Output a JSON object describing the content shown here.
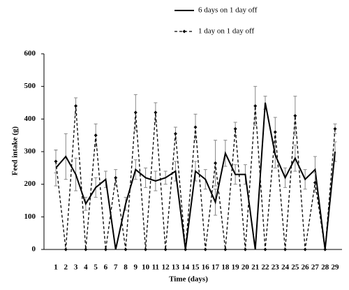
{
  "chart_data": {
    "type": "line",
    "x_label": "Time (days)",
    "y_label": "Feed intake (g)",
    "categories": [
      "1",
      "2",
      "3",
      "4",
      "5",
      "6",
      "7",
      "8",
      "9",
      "10",
      "11",
      "12",
      "13",
      "14",
      "15",
      "16",
      "17",
      "18",
      "19",
      "20",
      "21",
      "22",
      "23",
      "24",
      "25",
      "26",
      "27",
      "28",
      "29"
    ],
    "ylim": [
      0,
      600
    ],
    "yticks": [
      0,
      100,
      200,
      300,
      400,
      500,
      600
    ],
    "grid": false,
    "series": [
      {
        "name": "6 days on 1 day off",
        "color": "#000000",
        "dash": false,
        "values": [
          250,
          285,
          230,
          140,
          190,
          215,
          0,
          140,
          245,
          220,
          210,
          220,
          240,
          0,
          240,
          215,
          145,
          295,
          230,
          230,
          0,
          450,
          290,
          220,
          280,
          215,
          245,
          0,
          300
        ],
        "errors": [
          55,
          70,
          50,
          20,
          30,
          25,
          null,
          20,
          30,
          30,
          30,
          20,
          30,
          null,
          30,
          30,
          40,
          40,
          30,
          30,
          null,
          20,
          40,
          30,
          40,
          30,
          40,
          null,
          30
        ]
      },
      {
        "name": "1 day on 1 day off",
        "color": "#000000",
        "dash": true,
        "values": [
          270,
          0,
          440,
          0,
          350,
          0,
          220,
          0,
          420,
          0,
          420,
          0,
          355,
          0,
          375,
          0,
          265,
          0,
          370,
          0,
          440,
          0,
          360,
          0,
          410,
          0,
          205,
          0,
          370
        ],
        "errors": [
          35,
          null,
          25,
          null,
          35,
          null,
          25,
          null,
          55,
          null,
          30,
          null,
          20,
          null,
          40,
          null,
          70,
          null,
          20,
          null,
          60,
          null,
          45,
          null,
          60,
          null,
          30,
          null,
          15
        ]
      }
    ]
  }
}
